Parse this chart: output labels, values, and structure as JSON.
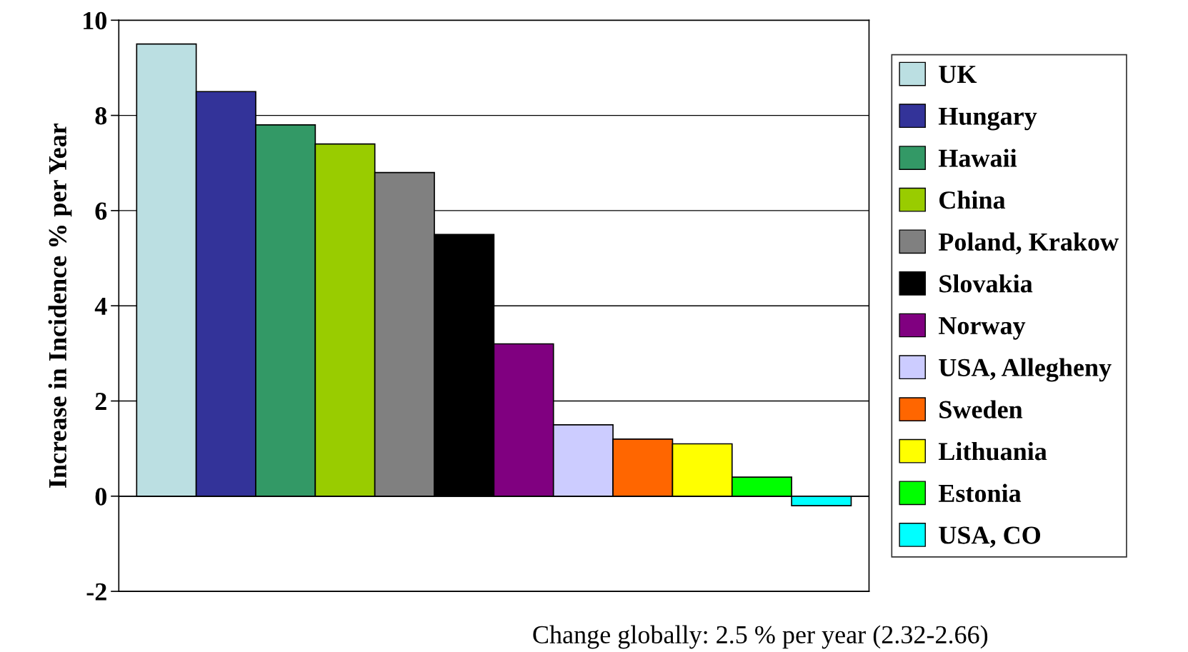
{
  "chart_data": {
    "type": "bar",
    "ylabel": "Increase in Incidence % per Year",
    "categories": [
      null,
      null,
      null,
      null,
      null,
      null,
      null,
      null,
      null,
      null,
      null,
      null
    ],
    "series": [
      {
        "name": "UK",
        "color": "#bbdfe2",
        "values": [
          9.5,
          null,
          null,
          null,
          null,
          null,
          null,
          null,
          null,
          null,
          null,
          null
        ]
      },
      {
        "name": "Hungary",
        "color": "#333399",
        "values": [
          null,
          8.5,
          null,
          null,
          null,
          null,
          null,
          null,
          null,
          null,
          null,
          null
        ]
      },
      {
        "name": "Hawaii",
        "color": "#339966",
        "values": [
          null,
          null,
          7.8,
          null,
          null,
          null,
          null,
          null,
          null,
          null,
          null,
          null
        ]
      },
      {
        "name": "China",
        "color": "#99cc00",
        "values": [
          null,
          null,
          null,
          7.4,
          null,
          null,
          null,
          null,
          null,
          null,
          null,
          null
        ]
      },
      {
        "name": "Poland, Krakow",
        "color": "#808080",
        "values": [
          null,
          null,
          null,
          null,
          6.8,
          null,
          null,
          null,
          null,
          null,
          null,
          null
        ]
      },
      {
        "name": "Slovakia",
        "color": "#000000",
        "values": [
          null,
          null,
          null,
          null,
          null,
          5.5,
          null,
          null,
          null,
          null,
          null,
          null
        ]
      },
      {
        "name": "Norway",
        "color": "#800080",
        "values": [
          null,
          null,
          null,
          null,
          null,
          null,
          3.2,
          null,
          null,
          null,
          null,
          null
        ]
      },
      {
        "name": "USA, Allegheny",
        "color": "#ccccff",
        "values": [
          null,
          null,
          null,
          null,
          null,
          null,
          null,
          1.5,
          null,
          null,
          null,
          null
        ]
      },
      {
        "name": "Sweden",
        "color": "#ff6600",
        "values": [
          null,
          null,
          null,
          null,
          null,
          null,
          null,
          null,
          1.2,
          null,
          null,
          null
        ]
      },
      {
        "name": "Lithuania",
        "color": "#ffff00",
        "values": [
          null,
          null,
          null,
          null,
          null,
          null,
          null,
          null,
          null,
          1.1,
          null,
          null
        ]
      },
      {
        "name": "Estonia",
        "color": "#00ff00",
        "values": [
          null,
          null,
          null,
          null,
          null,
          null,
          null,
          null,
          null,
          null,
          0.4,
          null
        ]
      },
      {
        "name": "USA, CO",
        "color": "#00ffff",
        "values": [
          null,
          null,
          null,
          null,
          null,
          null,
          null,
          null,
          null,
          null,
          null,
          -0.2
        ]
      }
    ],
    "ylim": [
      -2,
      10
    ],
    "yticks": [
      -2,
      0,
      2,
      4,
      6,
      8,
      10
    ],
    "grid": "y",
    "legend": "right",
    "annotations": [
      "Change globally: 2.5 % per year (2.32-2.66)"
    ]
  }
}
